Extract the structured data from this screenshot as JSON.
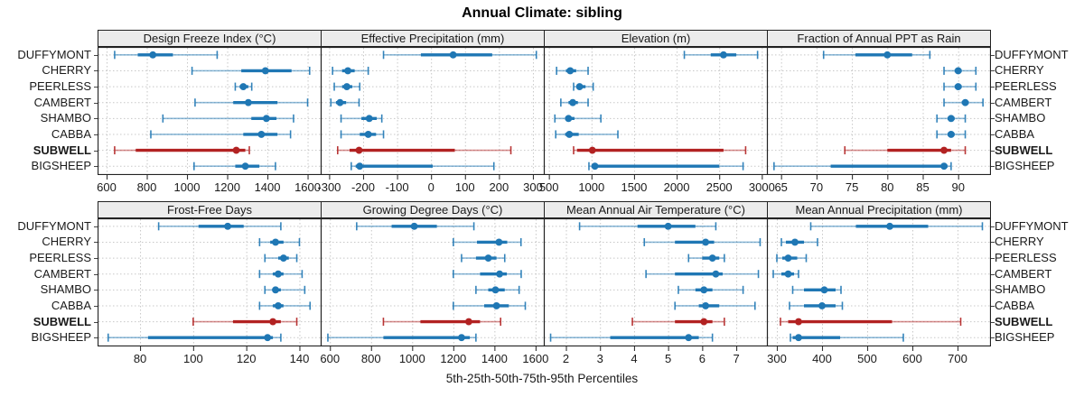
{
  "title": "Annual Climate: sibling",
  "caption": "5th-25th-50th-75th-95th Percentiles",
  "stations": [
    "DUFFYMONT",
    "CHERRY",
    "PEERLESS",
    "CAMBERT",
    "SHAMBO",
    "CABBA",
    "SUBWELL",
    "BIGSHEEP"
  ],
  "highlight_station": "SUBWELL",
  "colors": {
    "series_normal": "#1f77b4",
    "series_highlight": "#b22222",
    "grid": "#c8c8c8",
    "strip_bg": "#ececec",
    "panel_border": "#222222",
    "tick_text": "#1a1a1a"
  },
  "chart_data": [
    {
      "type": "scatter",
      "subtype": "dot-whisker-percentiles",
      "panel": "Design Freeze Index (°C)",
      "xlim": [
        555,
        1665
      ],
      "ticks": [
        600,
        800,
        1000,
        1200,
        1400,
        1600
      ],
      "percentiles": [
        [
          640,
          755,
          830,
          930,
          1150
        ],
        [
          1025,
          1270,
          1390,
          1520,
          1610
        ],
        [
          1240,
          1262,
          1280,
          1305,
          1322
        ],
        [
          1040,
          1230,
          1305,
          1450,
          1600
        ],
        [
          880,
          1320,
          1395,
          1445,
          1530
        ],
        [
          820,
          1280,
          1370,
          1450,
          1515
        ],
        [
          640,
          745,
          1245,
          1290,
          1310
        ],
        [
          1035,
          1240,
          1290,
          1360,
          1440
        ]
      ]
    },
    {
      "type": "scatter",
      "subtype": "dot-whisker-percentiles",
      "panel": "Effective Precipitation (mm)",
      "xlim": [
        -325,
        332
      ],
      "ticks": [
        -300,
        -200,
        -100,
        0,
        100,
        200,
        300
      ],
      "percentiles": [
        [
          -140,
          -30,
          65,
          180,
          310
        ],
        [
          -290,
          -262,
          -245,
          -225,
          -185
        ],
        [
          -285,
          -262,
          -248,
          -232,
          -210
        ],
        [
          -295,
          -280,
          -268,
          -250,
          -212
        ],
        [
          -265,
          -205,
          -182,
          -160,
          -145
        ],
        [
          -265,
          -210,
          -185,
          -162,
          -140
        ],
        [
          -275,
          -240,
          -212,
          70,
          235
        ],
        [
          -235,
          -222,
          -210,
          5,
          185
        ]
      ]
    },
    {
      "type": "scatter",
      "subtype": "dot-whisker-percentiles",
      "panel": "Elevation (m)",
      "xlim": [
        440,
        3060
      ],
      "ticks": [
        500,
        1000,
        1500,
        2000,
        2500,
        3000
      ],
      "percentiles": [
        [
          2090,
          2400,
          2550,
          2700,
          2950
        ],
        [
          590,
          700,
          750,
          820,
          960
        ],
        [
          790,
          830,
          860,
          930,
          1020
        ],
        [
          640,
          730,
          780,
          840,
          960
        ],
        [
          570,
          690,
          730,
          800,
          1110
        ],
        [
          580,
          690,
          740,
          850,
          1310
        ],
        [
          790,
          830,
          1010,
          2550,
          2810
        ],
        [
          970,
          1000,
          1040,
          2500,
          2780
        ]
      ]
    },
    {
      "type": "scatter",
      "subtype": "dot-whisker-percentiles",
      "panel": "Fraction of Annual PPT as Rain",
      "xlim": [
        63,
        94.5
      ],
      "ticks": [
        65,
        70,
        75,
        80,
        85,
        90
      ],
      "percentiles": [
        [
          71,
          75.5,
          80,
          83.5,
          86
        ],
        [
          88,
          89.5,
          90,
          90.5,
          92.5
        ],
        [
          88,
          89.5,
          90,
          90.5,
          92.5
        ],
        [
          88,
          90.5,
          91,
          91.5,
          93.5
        ],
        [
          87,
          88.5,
          89,
          89.5,
          91
        ],
        [
          87,
          88.5,
          89,
          89.5,
          91
        ],
        [
          74,
          80,
          88,
          89,
          91
        ],
        [
          64,
          72,
          88,
          88.5,
          89
        ]
      ]
    },
    {
      "type": "scatter",
      "subtype": "dot-whisker-percentiles",
      "panel": "Frost-Free Days",
      "xlim": [
        64,
        148
      ],
      "ticks": [
        80,
        100,
        120,
        140
      ],
      "percentiles": [
        [
          87,
          102,
          113,
          119,
          133
        ],
        [
          125,
          129,
          131,
          134,
          140
        ],
        [
          127,
          132,
          134,
          136,
          139
        ],
        [
          125,
          130,
          132,
          134,
          141
        ],
        [
          127,
          130,
          131,
          133,
          142
        ],
        [
          125,
          130,
          132,
          134,
          144
        ],
        [
          100,
          115,
          130,
          133,
          139
        ],
        [
          68,
          83,
          128,
          130,
          133
        ]
      ]
    },
    {
      "type": "scatter",
      "subtype": "dot-whisker-percentiles",
      "panel": "Growing Degree Days (°C)",
      "xlim": [
        555,
        1640
      ],
      "ticks": [
        600,
        800,
        1000,
        1200,
        1400,
        1600
      ],
      "percentiles": [
        [
          730,
          900,
          1010,
          1120,
          1300
        ],
        [
          1200,
          1315,
          1422,
          1462,
          1529
        ],
        [
          1240,
          1310,
          1370,
          1410,
          1450
        ],
        [
          1200,
          1330,
          1425,
          1460,
          1530
        ],
        [
          1310,
          1370,
          1405,
          1450,
          1520
        ],
        [
          1200,
          1350,
          1410,
          1470,
          1550
        ],
        [
          860,
          1040,
          1275,
          1330,
          1430
        ],
        [
          590,
          860,
          1240,
          1280,
          1310
        ]
      ]
    },
    {
      "type": "scatter",
      "subtype": "dot-whisker-percentiles",
      "panel": "Mean Annual Air Temperature (°C)",
      "xlim": [
        1.35,
        7.9
      ],
      "ticks": [
        2,
        3,
        4,
        5,
        6,
        7
      ],
      "percentiles": [
        [
          2.4,
          4.1,
          5.0,
          5.8,
          6.4
        ],
        [
          4.3,
          5.2,
          6.1,
          6.35,
          7.7
        ],
        [
          5.6,
          6.0,
          6.3,
          6.5,
          6.65
        ],
        [
          4.35,
          5.2,
          6.4,
          6.6,
          7.65
        ],
        [
          5.3,
          5.8,
          6.05,
          6.3,
          7.2
        ],
        [
          5.2,
          5.9,
          6.1,
          6.5,
          7.55
        ],
        [
          3.95,
          5.2,
          6.05,
          6.3,
          6.65
        ],
        [
          1.55,
          3.3,
          5.6,
          5.9,
          6.3
        ]
      ]
    },
    {
      "type": "scatter",
      "subtype": "dot-whisker-percentiles",
      "panel": "Mean Annual Precipitation (mm)",
      "xlim": [
        278,
        772
      ],
      "ticks": [
        300,
        400,
        500,
        600,
        700
      ],
      "percentiles": [
        [
          375,
          475,
          550,
          635,
          755
        ],
        [
          310,
          320,
          340,
          360,
          390
        ],
        [
          300,
          312,
          325,
          345,
          365
        ],
        [
          292,
          310,
          325,
          338,
          348
        ],
        [
          335,
          360,
          405,
          430,
          442
        ],
        [
          328,
          360,
          400,
          430,
          445
        ],
        [
          308,
          325,
          348,
          555,
          707
        ],
        [
          330,
          335,
          348,
          440,
          580
        ]
      ]
    }
  ]
}
